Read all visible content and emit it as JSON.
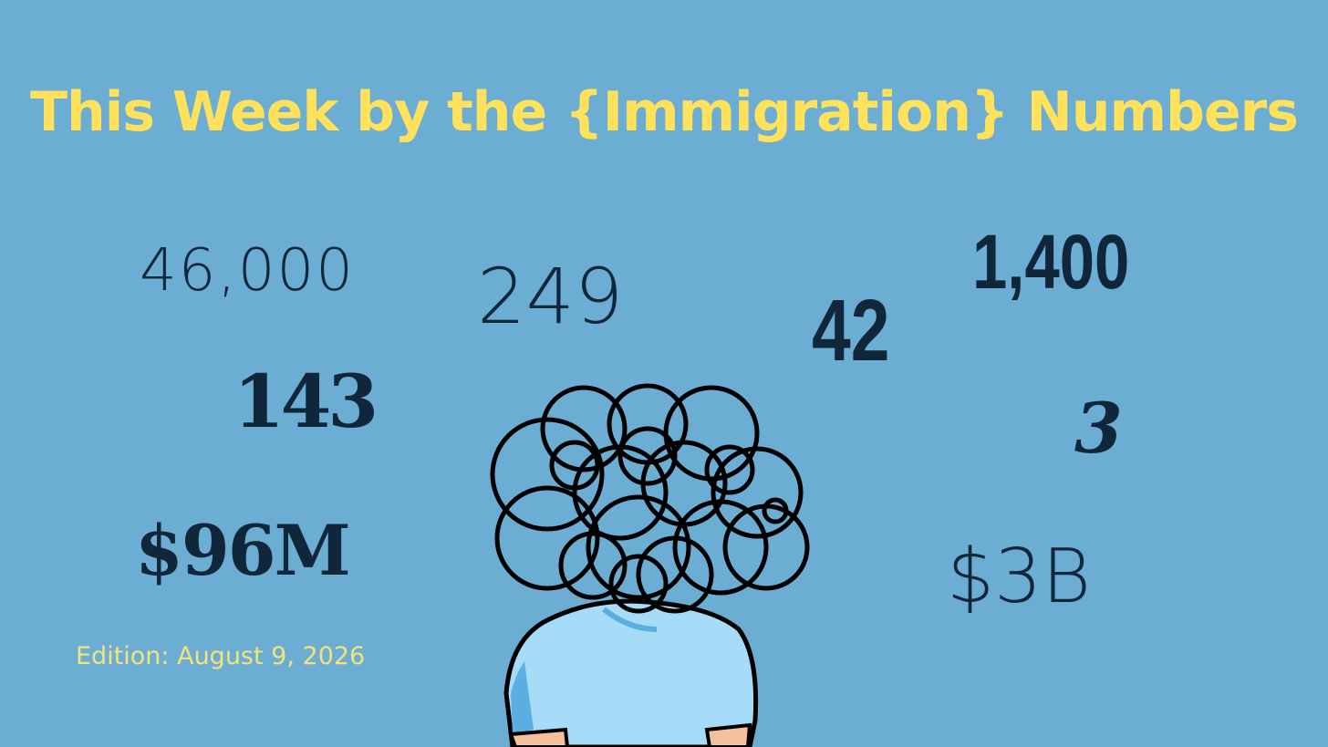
{
  "header": {
    "title": "This Week by the {Immigration} Numbers"
  },
  "numbers": [
    "46,000",
    "249",
    "42",
    "1,400",
    "143",
    "3",
    "$96M",
    "$3B"
  ],
  "edition": "Edition: August 9, 2026"
}
